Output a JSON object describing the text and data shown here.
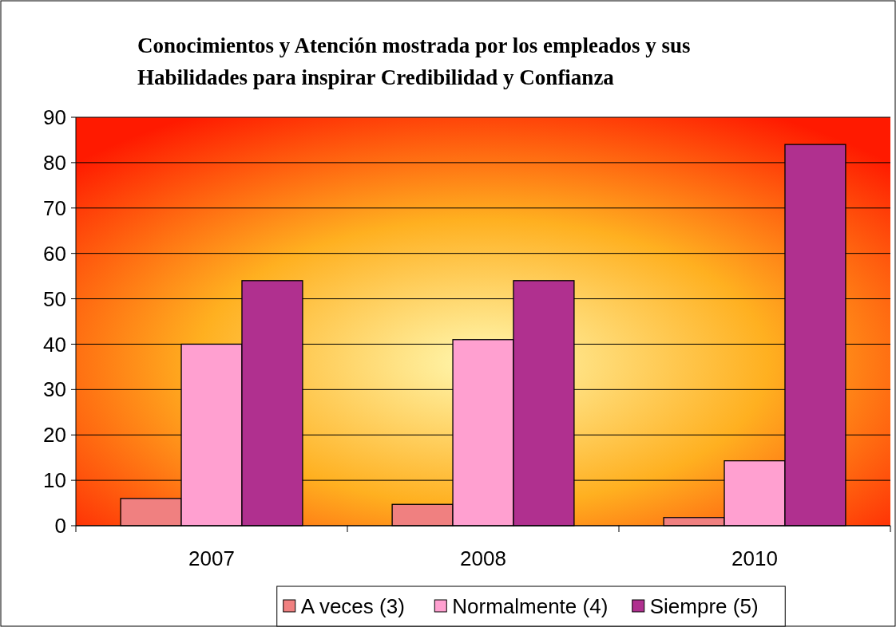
{
  "chart_data": {
    "type": "bar",
    "title": "Conocimientos y Atención mostrada por los empleados y sus Habilidades para inspirar Credibilidad y Confianza",
    "categories": [
      "2007",
      "2008",
      "2010"
    ],
    "series": [
      {
        "name": "A veces (3)",
        "color": "#f08080",
        "values": [
          6,
          4.7,
          1.8
        ]
      },
      {
        "name": "Normalmente (4)",
        "color": "#ffa0d0",
        "values": [
          40,
          41,
          14.3
        ]
      },
      {
        "name": "Siempre (5)",
        "color": "#b0308f",
        "values": [
          54,
          54,
          84
        ]
      }
    ],
    "ylim": [
      0,
      90
    ],
    "yticks": [
      0,
      10,
      20,
      30,
      40,
      50,
      60,
      70,
      80,
      90
    ],
    "grid": "y",
    "legend": "bottom"
  }
}
